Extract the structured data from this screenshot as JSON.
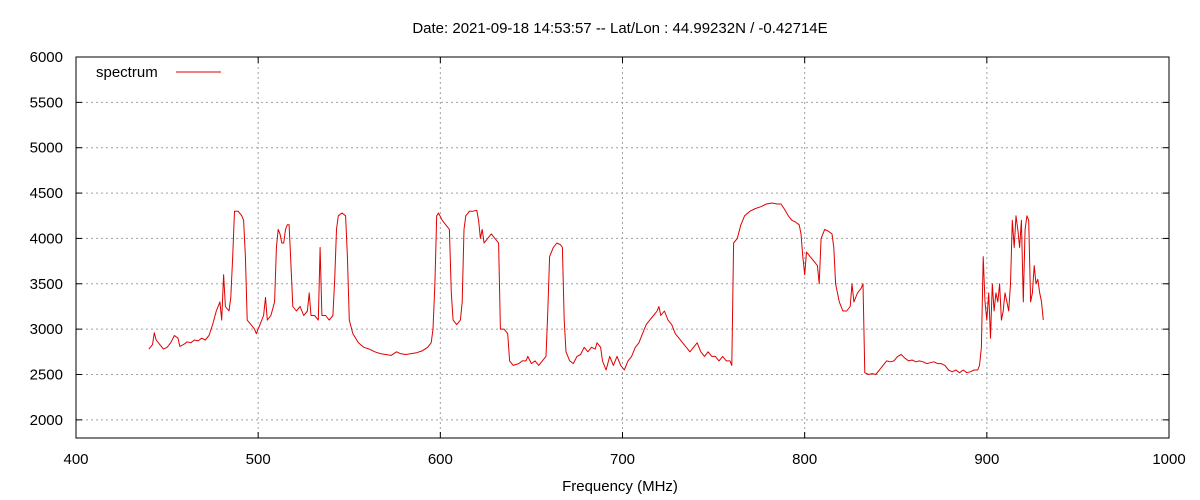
{
  "chart_data": {
    "type": "line",
    "title": "Date: 2021-09-18 14:53:57  --  Lat/Lon : 44.99232N / -0.42714E",
    "xlabel": "Frequency (MHz)",
    "ylabel": "",
    "xlim": [
      400,
      1000
    ],
    "ylim": [
      1800,
      6000
    ],
    "xticks": [
      400,
      500,
      600,
      700,
      800,
      900,
      1000
    ],
    "yticks": [
      2000,
      2500,
      3000,
      3500,
      4000,
      4500,
      5000,
      5500,
      6000
    ],
    "grid": true,
    "legend_position": "top-left",
    "series": [
      {
        "name": "spectrum",
        "color": "#e00000",
        "points": [
          [
            440,
            2780
          ],
          [
            442,
            2830
          ],
          [
            443,
            2960
          ],
          [
            444,
            2880
          ],
          [
            446,
            2830
          ],
          [
            448,
            2780
          ],
          [
            450,
            2800
          ],
          [
            452,
            2850
          ],
          [
            454,
            2930
          ],
          [
            456,
            2900
          ],
          [
            457,
            2810
          ],
          [
            459,
            2830
          ],
          [
            461,
            2860
          ],
          [
            463,
            2850
          ],
          [
            465,
            2880
          ],
          [
            467,
            2870
          ],
          [
            469,
            2900
          ],
          [
            471,
            2880
          ],
          [
            473,
            2930
          ],
          [
            475,
            3050
          ],
          [
            477,
            3200
          ],
          [
            479,
            3300
          ],
          [
            480,
            3100
          ],
          [
            481,
            3600
          ],
          [
            482,
            3250
          ],
          [
            484,
            3200
          ],
          [
            485,
            3350
          ],
          [
            486,
            3800
          ],
          [
            487,
            4300
          ],
          [
            489,
            4300
          ],
          [
            491,
            4250
          ],
          [
            492,
            4200
          ],
          [
            493,
            3800
          ],
          [
            494,
            3100
          ],
          [
            496,
            3050
          ],
          [
            498,
            3000
          ],
          [
            499,
            2950
          ],
          [
            501,
            3050
          ],
          [
            503,
            3150
          ],
          [
            504,
            3350
          ],
          [
            505,
            3100
          ],
          [
            507,
            3150
          ],
          [
            509,
            3300
          ],
          [
            510,
            3900
          ],
          [
            511,
            4100
          ],
          [
            512,
            4050
          ],
          [
            513,
            3950
          ],
          [
            514,
            3950
          ],
          [
            515,
            4100
          ],
          [
            516,
            4150
          ],
          [
            517,
            4150
          ],
          [
            518,
            3700
          ],
          [
            519,
            3250
          ],
          [
            521,
            3200
          ],
          [
            523,
            3250
          ],
          [
            525,
            3150
          ],
          [
            527,
            3200
          ],
          [
            528,
            3400
          ],
          [
            529,
            3150
          ],
          [
            531,
            3150
          ],
          [
            533,
            3100
          ],
          [
            534,
            3900
          ],
          [
            535,
            3150
          ],
          [
            537,
            3150
          ],
          [
            539,
            3100
          ],
          [
            541,
            3150
          ],
          [
            542,
            3550
          ],
          [
            543,
            4100
          ],
          [
            544,
            4250
          ],
          [
            546,
            4280
          ],
          [
            548,
            4250
          ],
          [
            549,
            3800
          ],
          [
            550,
            3100
          ],
          [
            552,
            2950
          ],
          [
            555,
            2850
          ],
          [
            558,
            2800
          ],
          [
            561,
            2780
          ],
          [
            564,
            2750
          ],
          [
            567,
            2730
          ],
          [
            570,
            2720
          ],
          [
            573,
            2710
          ],
          [
            576,
            2750
          ],
          [
            578,
            2730
          ],
          [
            581,
            2720
          ],
          [
            584,
            2730
          ],
          [
            587,
            2740
          ],
          [
            590,
            2760
          ],
          [
            593,
            2800
          ],
          [
            595,
            2850
          ],
          [
            596,
            3000
          ],
          [
            597,
            3500
          ],
          [
            598,
            4250
          ],
          [
            599,
            4280
          ],
          [
            601,
            4200
          ],
          [
            603,
            4150
          ],
          [
            605,
            4100
          ],
          [
            606,
            3400
          ],
          [
            607,
            3100
          ],
          [
            609,
            3050
          ],
          [
            611,
            3100
          ],
          [
            612,
            3300
          ],
          [
            613,
            4100
          ],
          [
            614,
            4250
          ],
          [
            616,
            4300
          ],
          [
            618,
            4300
          ],
          [
            620,
            4310
          ],
          [
            621,
            4200
          ],
          [
            622,
            4000
          ],
          [
            623,
            4100
          ],
          [
            624,
            3950
          ],
          [
            626,
            4000
          ],
          [
            628,
            4050
          ],
          [
            630,
            4000
          ],
          [
            632,
            3950
          ],
          [
            633,
            3000
          ],
          [
            635,
            3000
          ],
          [
            637,
            2950
          ],
          [
            638,
            2650
          ],
          [
            640,
            2600
          ],
          [
            643,
            2620
          ],
          [
            645,
            2650
          ],
          [
            647,
            2650
          ],
          [
            648,
            2700
          ],
          [
            650,
            2620
          ],
          [
            652,
            2650
          ],
          [
            654,
            2600
          ],
          [
            656,
            2650
          ],
          [
            658,
            2700
          ],
          [
            659,
            3200
          ],
          [
            660,
            3800
          ],
          [
            662,
            3900
          ],
          [
            664,
            3950
          ],
          [
            666,
            3930
          ],
          [
            667,
            3900
          ],
          [
            668,
            3100
          ],
          [
            669,
            2750
          ],
          [
            671,
            2650
          ],
          [
            673,
            2620
          ],
          [
            675,
            2700
          ],
          [
            677,
            2720
          ],
          [
            679,
            2800
          ],
          [
            681,
            2750
          ],
          [
            683,
            2800
          ],
          [
            685,
            2780
          ],
          [
            686,
            2850
          ],
          [
            688,
            2800
          ],
          [
            689,
            2650
          ],
          [
            691,
            2550
          ],
          [
            693,
            2700
          ],
          [
            695,
            2600
          ],
          [
            697,
            2700
          ],
          [
            699,
            2600
          ],
          [
            701,
            2550
          ],
          [
            703,
            2650
          ],
          [
            705,
            2700
          ],
          [
            707,
            2800
          ],
          [
            709,
            2850
          ],
          [
            711,
            2950
          ],
          [
            713,
            3050
          ],
          [
            715,
            3100
          ],
          [
            717,
            3150
          ],
          [
            719,
            3200
          ],
          [
            720,
            3250
          ],
          [
            721,
            3150
          ],
          [
            723,
            3200
          ],
          [
            725,
            3100
          ],
          [
            727,
            3050
          ],
          [
            729,
            2950
          ],
          [
            731,
            2900
          ],
          [
            733,
            2850
          ],
          [
            735,
            2800
          ],
          [
            737,
            2750
          ],
          [
            739,
            2800
          ],
          [
            741,
            2850
          ],
          [
            743,
            2750
          ],
          [
            745,
            2700
          ],
          [
            747,
            2750
          ],
          [
            749,
            2700
          ],
          [
            751,
            2700
          ],
          [
            753,
            2650
          ],
          [
            755,
            2700
          ],
          [
            757,
            2650
          ],
          [
            759,
            2650
          ],
          [
            760,
            2600
          ],
          [
            761,
            3950
          ],
          [
            763,
            4000
          ],
          [
            765,
            4150
          ],
          [
            767,
            4250
          ],
          [
            770,
            4300
          ],
          [
            773,
            4330
          ],
          [
            776,
            4350
          ],
          [
            779,
            4380
          ],
          [
            782,
            4390
          ],
          [
            785,
            4380
          ],
          [
            787,
            4380
          ],
          [
            789,
            4320
          ],
          [
            791,
            4250
          ],
          [
            793,
            4200
          ],
          [
            795,
            4180
          ],
          [
            797,
            4150
          ],
          [
            798,
            4050
          ],
          [
            799,
            3800
          ],
          [
            800,
            3600
          ],
          [
            801,
            3850
          ],
          [
            803,
            3800
          ],
          [
            805,
            3750
          ],
          [
            807,
            3700
          ],
          [
            808,
            3500
          ],
          [
            809,
            4000
          ],
          [
            811,
            4100
          ],
          [
            813,
            4080
          ],
          [
            815,
            4050
          ],
          [
            816,
            3900
          ],
          [
            817,
            3500
          ],
          [
            819,
            3300
          ],
          [
            821,
            3200
          ],
          [
            823,
            3200
          ],
          [
            825,
            3250
          ],
          [
            826,
            3500
          ],
          [
            827,
            3300
          ],
          [
            829,
            3400
          ],
          [
            831,
            3450
          ],
          [
            832,
            3500
          ],
          [
            833,
            2520
          ],
          [
            835,
            2500
          ],
          [
            837,
            2510
          ],
          [
            839,
            2500
          ],
          [
            841,
            2550
          ],
          [
            843,
            2600
          ],
          [
            845,
            2650
          ],
          [
            847,
            2640
          ],
          [
            849,
            2650
          ],
          [
            851,
            2700
          ],
          [
            853,
            2720
          ],
          [
            855,
            2680
          ],
          [
            857,
            2650
          ],
          [
            859,
            2660
          ],
          [
            861,
            2640
          ],
          [
            863,
            2650
          ],
          [
            865,
            2640
          ],
          [
            867,
            2620
          ],
          [
            869,
            2630
          ],
          [
            871,
            2640
          ],
          [
            873,
            2620
          ],
          [
            875,
            2620
          ],
          [
            877,
            2600
          ],
          [
            879,
            2550
          ],
          [
            881,
            2530
          ],
          [
            883,
            2550
          ],
          [
            885,
            2520
          ],
          [
            887,
            2550
          ],
          [
            889,
            2520
          ],
          [
            891,
            2530
          ],
          [
            893,
            2550
          ],
          [
            895,
            2550
          ],
          [
            896,
            2600
          ],
          [
            897,
            2800
          ],
          [
            898,
            3800
          ],
          [
            899,
            3300
          ],
          [
            900,
            3100
          ],
          [
            901,
            3400
          ],
          [
            902,
            2900
          ],
          [
            903,
            3500
          ],
          [
            904,
            3200
          ],
          [
            905,
            3400
          ],
          [
            906,
            3300
          ],
          [
            907,
            3500
          ],
          [
            908,
            3100
          ],
          [
            909,
            3200
          ],
          [
            910,
            3400
          ],
          [
            911,
            3300
          ],
          [
            912,
            3200
          ],
          [
            913,
            3500
          ],
          [
            914,
            4200
          ],
          [
            915,
            3900
          ],
          [
            916,
            4250
          ],
          [
            917,
            4100
          ],
          [
            918,
            3900
          ],
          [
            919,
            4200
          ],
          [
            920,
            3300
          ],
          [
            921,
            4100
          ],
          [
            922,
            4250
          ],
          [
            923,
            4200
          ],
          [
            924,
            3300
          ],
          [
            925,
            3400
          ],
          [
            926,
            3700
          ],
          [
            927,
            3500
          ],
          [
            928,
            3550
          ],
          [
            929,
            3400
          ],
          [
            930,
            3300
          ],
          [
            931,
            3100
          ]
        ]
      }
    ]
  }
}
